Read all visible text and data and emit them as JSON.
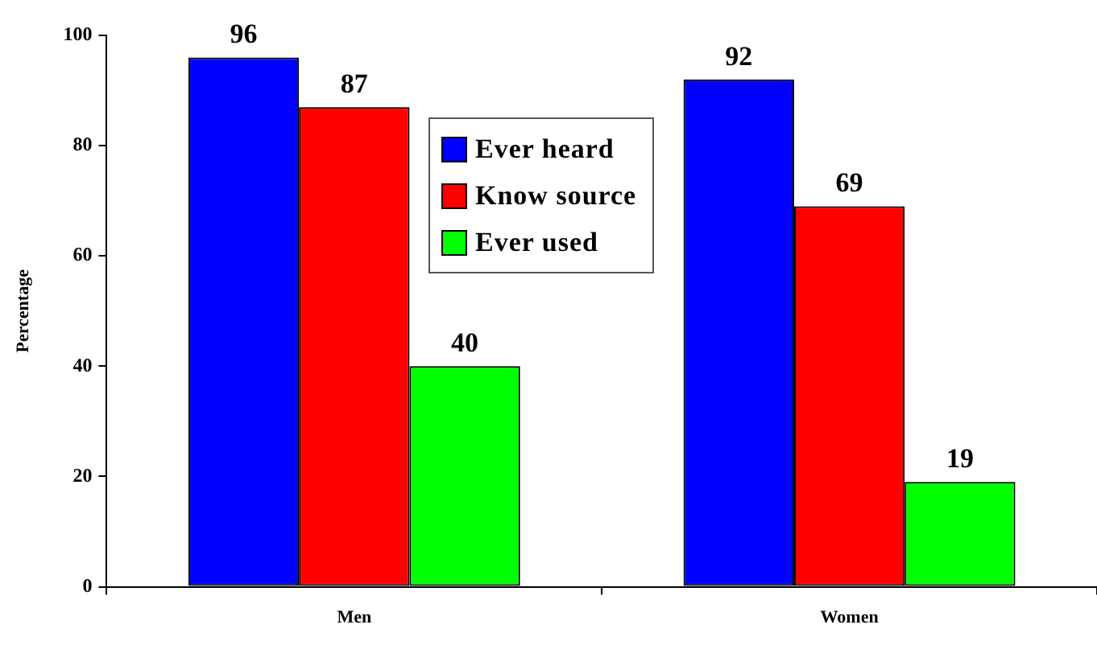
{
  "chart_data": {
    "type": "bar",
    "ylabel": "Percentage",
    "categories": [
      "Men",
      "Women"
    ],
    "series": [
      {
        "name": "Ever heard",
        "color": "#0000ff",
        "values": [
          96,
          92
        ]
      },
      {
        "name": "Know source",
        "color": "#ff0000",
        "values": [
          87,
          69
        ]
      },
      {
        "name": "Ever used",
        "color": "#00ff00",
        "values": [
          40,
          19
        ]
      }
    ],
    "ylim": [
      0,
      100
    ],
    "yticks": [
      0,
      20,
      40,
      60,
      80,
      100
    ],
    "data_labels": true,
    "legend": "top",
    "grid": false
  }
}
